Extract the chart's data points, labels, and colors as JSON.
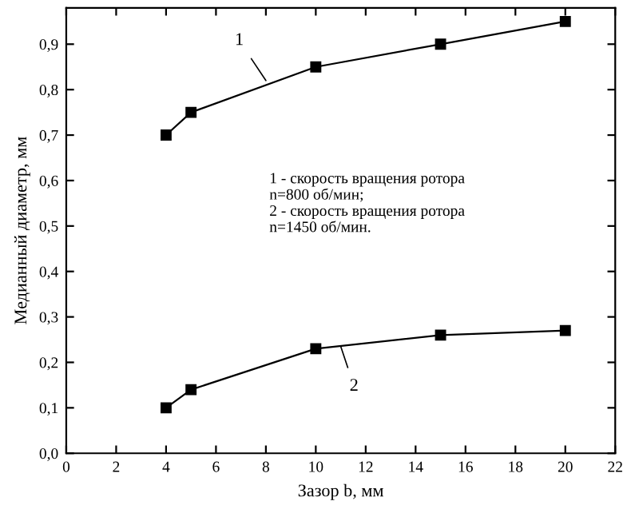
{
  "chart_data": {
    "type": "line",
    "xlabel": "Зазор b, мм",
    "ylabel": "Медианный диаметр, мм",
    "series": [
      {
        "color": "#000000",
        "x": [
          4,
          5,
          10,
          15,
          20
        ],
        "values": [
          0.7,
          0.75,
          0.85,
          0.9,
          0.95
        ]
      },
      {
        "color": "#000000",
        "x": [
          4,
          5,
          10,
          15,
          20
        ],
        "values": [
          0.1,
          0.14,
          0.23,
          0.26,
          0.27
        ]
      }
    ],
    "marker": "square",
    "line_style": "solid",
    "grid": false,
    "legend": false,
    "xlim": [
      0,
      22
    ],
    "xticks": [
      0,
      2,
      4,
      6,
      8,
      10,
      12,
      14,
      16,
      18,
      20,
      22
    ],
    "ylim": [
      0,
      0.98
    ],
    "yticks": [
      {
        "value": 0,
        "label": "0,0"
      },
      {
        "value": 0.1,
        "label": "0,1"
      },
      {
        "value": 0.2,
        "label": "0,2"
      },
      {
        "value": 0.3,
        "label": "0,3"
      },
      {
        "value": 0.4,
        "label": "0,4"
      },
      {
        "value": 0.5,
        "label": "0,5"
      },
      {
        "value": 0.6,
        "label": "0,6"
      },
      {
        "value": 0.7,
        "label": "0,7"
      },
      {
        "value": 0.8,
        "label": "0,8"
      },
      {
        "value": 0.9,
        "label": "0,9"
      }
    ],
    "annotations": [
      {
        "text": "1",
        "x": 8,
        "y": 0.82
      },
      {
        "text": "2",
        "x": 11,
        "y": 0.235
      },
      "1 - скорость вращения ротора\nn=800 об/мин;\n2 - скорость вращения ротора\nn=1450 об/мин."
    ]
  }
}
